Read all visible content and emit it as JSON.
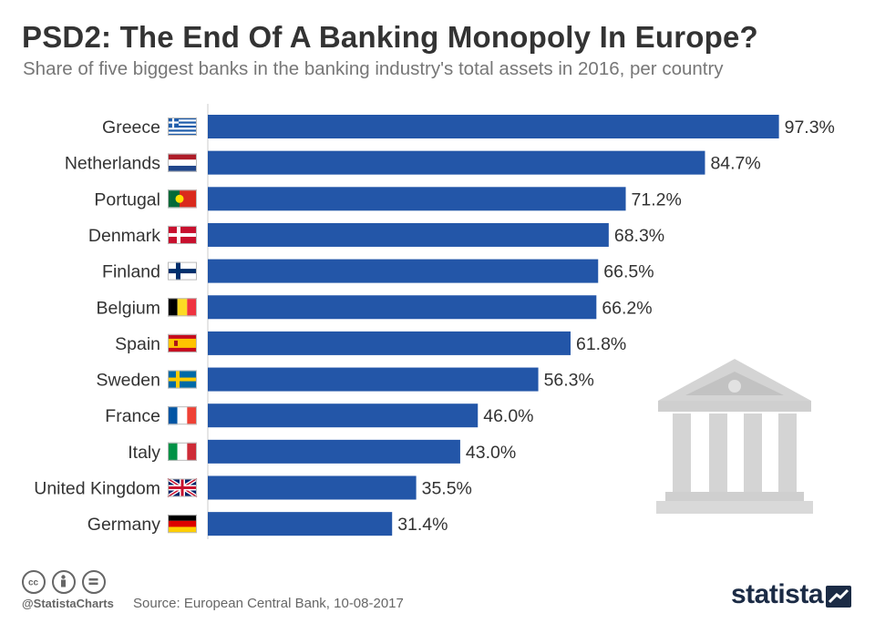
{
  "header": {
    "title": "PSD2: The End Of A Banking Monopoly In Europe?",
    "subtitle": "Share of five biggest banks in the banking industry's total assets in 2016, per country"
  },
  "chart_data": {
    "type": "bar",
    "orientation": "horizontal",
    "categories": [
      "Greece",
      "Netherlands",
      "Portugal",
      "Denmark",
      "Finland",
      "Belgium",
      "Spain",
      "Sweden",
      "France",
      "Italy",
      "United Kingdom",
      "Germany"
    ],
    "values": [
      97.3,
      84.7,
      71.2,
      68.3,
      66.5,
      66.2,
      61.8,
      56.3,
      46.0,
      43.0,
      35.5,
      31.4
    ],
    "value_labels": [
      "97.3%",
      "84.7%",
      "71.2%",
      "68.3%",
      "66.5%",
      "66.2%",
      "61.8%",
      "56.3%",
      "46.0%",
      "43.0%",
      "35.5%",
      "31.4%"
    ],
    "xlim": [
      0,
      100
    ],
    "unit": "%",
    "bar_color": "#2356a8",
    "grid": false
  },
  "flags": [
    "greece-flag-icon",
    "netherlands-flag-icon",
    "portugal-flag-icon",
    "denmark-flag-icon",
    "finland-flag-icon",
    "belgium-flag-icon",
    "spain-flag-icon",
    "sweden-flag-icon",
    "france-flag-icon",
    "italy-flag-icon",
    "united-kingdom-flag-icon",
    "germany-flag-icon"
  ],
  "decorations": {
    "illustration": "bank-building-icon",
    "license_icons": [
      "cc-icon",
      "attribution-icon",
      "no-derivatives-icon"
    ]
  },
  "footer": {
    "handle": "@StatistaCharts",
    "source": "Source: European Central Bank, 10-08-2017",
    "brand": "statista"
  },
  "colors": {
    "title": "#333333",
    "subtitle": "#777777",
    "bar": "#2356a8",
    "label": "#333333",
    "brand": "#1b2b45"
  }
}
